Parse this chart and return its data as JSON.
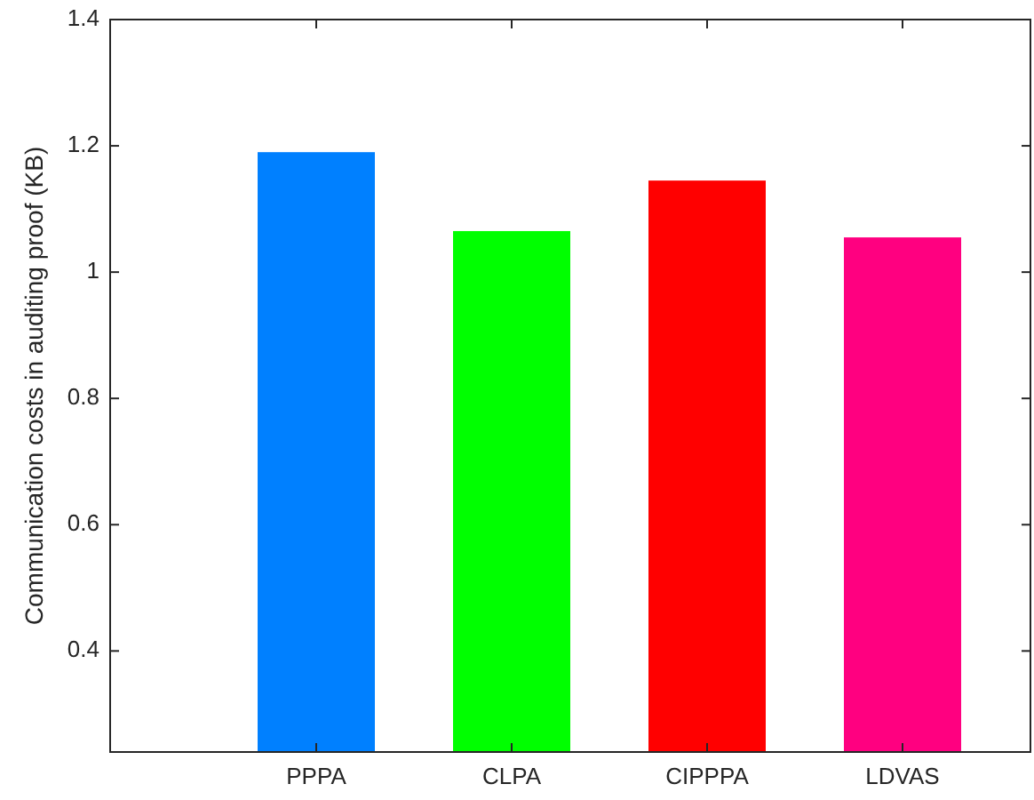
{
  "chart_data": {
    "type": "bar",
    "ylabel": "Communication costs in auditing proof (KB)",
    "categories": [
      "PPPA",
      "CLPA",
      "CIPPPA",
      "LDVAS"
    ],
    "values": [
      1.19,
      1.065,
      1.145,
      1.055
    ],
    "colors": [
      "#0080ff",
      "#00ff00",
      "#ff0000",
      "#ff0080"
    ],
    "ylim": [
      0.24,
      1.4
    ],
    "yticks": [
      0.4,
      0.6,
      0.8,
      1,
      1.2,
      1.4
    ],
    "grid": false
  }
}
